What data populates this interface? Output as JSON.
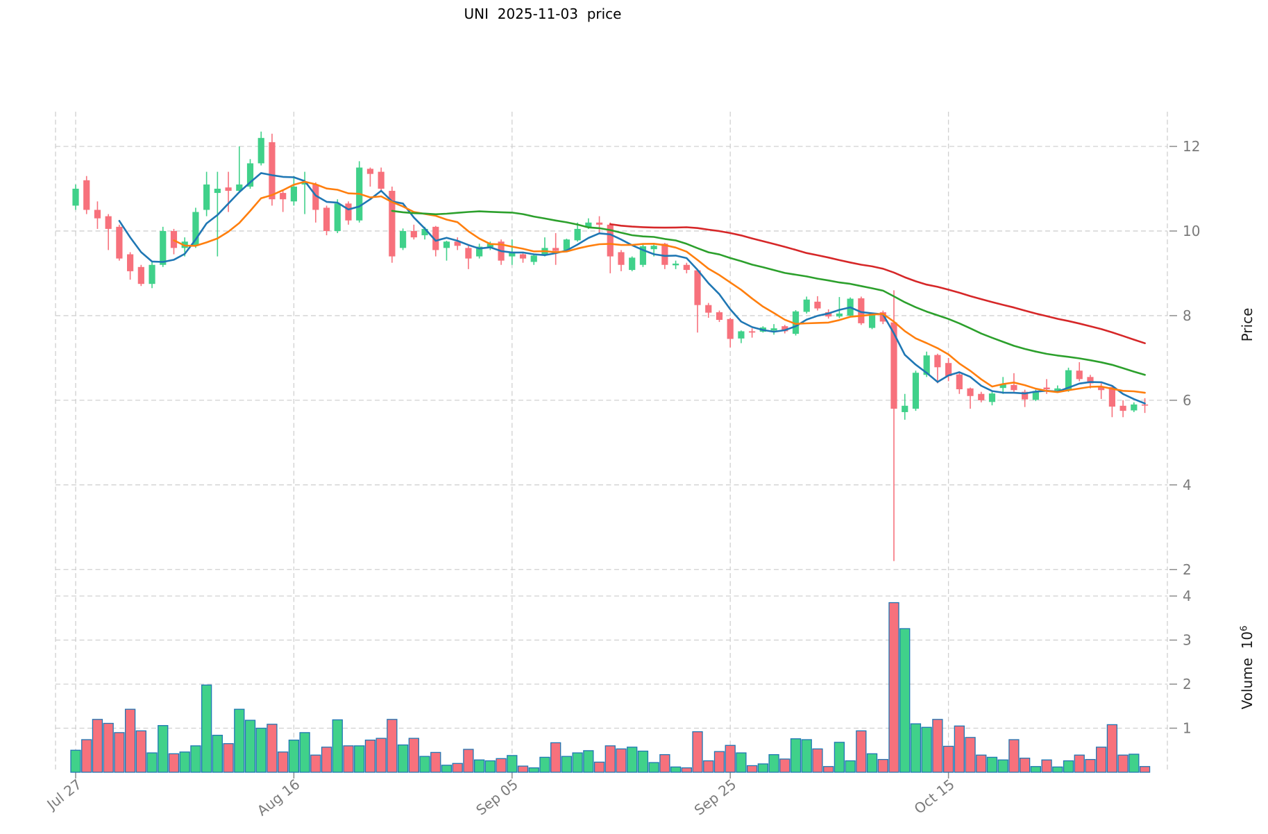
{
  "title": "UNI  2025-11-03  price",
  "axes": {
    "price_label": "Price",
    "volume_label": "Volume  10",
    "volume_exponent": "6"
  },
  "x_ticks": [
    {
      "label": "Jul 27",
      "index": 0
    },
    {
      "label": "Aug 16",
      "index": 20
    },
    {
      "label": "Sep 05",
      "index": 40
    },
    {
      "label": "Sep 25",
      "index": 60
    },
    {
      "label": "Oct 15",
      "index": 80
    }
  ],
  "price_ticks": [
    12,
    10,
    8,
    6,
    4,
    2
  ],
  "volume_ticks": [
    4,
    3,
    2,
    1
  ],
  "colors": {
    "up": "#40d18a",
    "down": "#f7717c",
    "volume_edge": "#1f77b4",
    "grid": "#d0d0d0",
    "tick_label": "#7a7a7a",
    "tick_mark": "#8c8c8c",
    "ma_colors": [
      "#1f77b4",
      "#ff7f0e",
      "#2ca02c",
      "#d62728"
    ]
  },
  "chart_data": {
    "type": "candlestick+volume",
    "title": "UNI  2025-11-03  price",
    "ylabel": "Price",
    "ylabel_lower": "Volume 10^6",
    "price_ylim": [
      1.98,
      12.82
    ],
    "volume_ylim": [
      0,
      4.52
    ],
    "grid": "dashed",
    "ma_windows": [
      5,
      10,
      30,
      50
    ],
    "ohlc": [
      [
        10.6,
        11.1,
        10.5,
        11.0
      ],
      [
        11.2,
        11.3,
        10.4,
        10.5
      ],
      [
        10.5,
        10.7,
        10.05,
        10.3
      ],
      [
        10.35,
        10.4,
        9.55,
        10.05
      ],
      [
        10.1,
        10.15,
        9.3,
        9.35
      ],
      [
        9.45,
        9.5,
        8.85,
        9.05
      ],
      [
        9.15,
        9.2,
        8.7,
        8.75
      ],
      [
        8.75,
        9.3,
        8.65,
        9.2
      ],
      [
        9.2,
        10.1,
        9.15,
        10.0
      ],
      [
        10.0,
        10.05,
        9.45,
        9.6
      ],
      [
        9.6,
        9.85,
        9.4,
        9.75
      ],
      [
        9.65,
        10.55,
        9.6,
        10.45
      ],
      [
        10.5,
        11.4,
        10.35,
        11.1
      ],
      [
        10.9,
        11.4,
        9.4,
        11.0
      ],
      [
        11.03,
        11.4,
        10.45,
        10.95
      ],
      [
        10.95,
        12.0,
        10.9,
        11.1
      ],
      [
        11.05,
        11.7,
        11.0,
        11.6
      ],
      [
        11.6,
        12.35,
        11.55,
        12.2
      ],
      [
        12.1,
        12.3,
        10.6,
        10.75
      ],
      [
        10.9,
        10.95,
        10.45,
        10.75
      ],
      [
        10.7,
        11.3,
        10.6,
        11.05
      ],
      [
        11.1,
        11.4,
        10.4,
        11.15
      ],
      [
        11.1,
        11.15,
        10.2,
        10.5
      ],
      [
        10.55,
        10.6,
        9.9,
        10.0
      ],
      [
        10.0,
        10.75,
        9.95,
        10.65
      ],
      [
        10.65,
        10.7,
        10.15,
        10.25
      ],
      [
        10.25,
        11.65,
        10.2,
        11.5
      ],
      [
        11.47,
        11.5,
        11.05,
        11.35
      ],
      [
        11.4,
        11.5,
        10.95,
        11.0
      ],
      [
        10.95,
        11.05,
        9.25,
        9.4
      ],
      [
        9.6,
        10.06,
        9.55,
        10.0
      ],
      [
        10.0,
        10.15,
        9.8,
        9.85
      ],
      [
        9.9,
        10.1,
        9.8,
        10.05
      ],
      [
        10.1,
        10.12,
        9.4,
        9.55
      ],
      [
        9.6,
        9.77,
        9.3,
        9.75
      ],
      [
        9.75,
        9.85,
        9.55,
        9.65
      ],
      [
        9.6,
        9.65,
        9.1,
        9.35
      ],
      [
        9.4,
        9.7,
        9.35,
        9.63
      ],
      [
        9.62,
        9.75,
        9.55,
        9.7
      ],
      [
        9.75,
        9.8,
        9.2,
        9.3
      ],
      [
        9.4,
        9.8,
        9.2,
        9.48
      ],
      [
        9.45,
        9.5,
        9.25,
        9.35
      ],
      [
        9.27,
        9.45,
        9.2,
        9.42
      ],
      [
        9.43,
        9.85,
        9.4,
        9.6
      ],
      [
        9.6,
        9.95,
        9.2,
        9.53
      ],
      [
        9.55,
        9.82,
        9.5,
        9.8
      ],
      [
        9.78,
        10.2,
        9.75,
        10.05
      ],
      [
        10.08,
        10.3,
        10.05,
        10.2
      ],
      [
        10.2,
        10.35,
        9.95,
        10.15
      ],
      [
        10.15,
        10.2,
        9.0,
        9.4
      ],
      [
        9.5,
        9.55,
        9.05,
        9.2
      ],
      [
        9.08,
        9.4,
        9.05,
        9.37
      ],
      [
        9.2,
        9.7,
        9.15,
        9.64
      ],
      [
        9.57,
        9.7,
        9.4,
        9.65
      ],
      [
        9.7,
        9.72,
        9.1,
        9.2
      ],
      [
        9.19,
        9.3,
        9.1,
        9.23
      ],
      [
        9.2,
        9.25,
        9.0,
        9.08
      ],
      [
        9.07,
        9.1,
        7.6,
        8.25
      ],
      [
        8.25,
        8.3,
        7.95,
        8.07
      ],
      [
        8.08,
        8.12,
        7.85,
        7.9
      ],
      [
        7.92,
        7.95,
        7.25,
        7.45
      ],
      [
        7.46,
        7.65,
        7.35,
        7.63
      ],
      [
        7.63,
        7.7,
        7.48,
        7.6
      ],
      [
        7.62,
        7.75,
        7.6,
        7.72
      ],
      [
        7.65,
        7.8,
        7.55,
        7.7
      ],
      [
        7.75,
        7.78,
        7.58,
        7.63
      ],
      [
        7.57,
        8.13,
        7.53,
        8.1
      ],
      [
        8.09,
        8.45,
        8.05,
        8.38
      ],
      [
        8.33,
        8.46,
        8.12,
        8.17
      ],
      [
        8.08,
        8.15,
        7.93,
        7.98
      ],
      [
        7.98,
        8.44,
        7.94,
        8.05
      ],
      [
        8.0,
        8.43,
        7.97,
        8.4
      ],
      [
        8.41,
        8.45,
        7.78,
        7.82
      ],
      [
        7.71,
        8.05,
        7.68,
        8.02
      ],
      [
        8.08,
        8.12,
        7.8,
        7.86
      ],
      [
        7.84,
        8.6,
        2.2,
        5.8
      ],
      [
        5.72,
        6.15,
        5.54,
        5.87
      ],
      [
        5.8,
        6.7,
        5.75,
        6.65
      ],
      [
        6.6,
        7.15,
        6.55,
        7.06
      ],
      [
        7.07,
        7.1,
        6.4,
        6.78
      ],
      [
        6.88,
        7.0,
        6.45,
        6.57
      ],
      [
        6.61,
        6.65,
        6.15,
        6.26
      ],
      [
        6.28,
        6.3,
        5.8,
        6.1
      ],
      [
        6.15,
        6.2,
        5.95,
        6.0
      ],
      [
        5.96,
        6.2,
        5.88,
        6.16
      ],
      [
        6.29,
        6.55,
        6.15,
        6.38
      ],
      [
        6.36,
        6.64,
        6.2,
        6.24
      ],
      [
        6.2,
        6.25,
        5.84,
        6.02
      ],
      [
        6.01,
        6.25,
        5.98,
        6.22
      ],
      [
        6.3,
        6.5,
        6.15,
        6.26
      ],
      [
        6.23,
        6.35,
        6.18,
        6.28
      ],
      [
        6.24,
        6.77,
        6.2,
        6.71
      ],
      [
        6.7,
        6.9,
        6.45,
        6.5
      ],
      [
        6.55,
        6.6,
        6.28,
        6.4
      ],
      [
        6.32,
        6.4,
        6.03,
        6.24
      ],
      [
        6.31,
        6.35,
        5.6,
        5.85
      ],
      [
        5.87,
        6.0,
        5.6,
        5.75
      ],
      [
        5.76,
        5.95,
        5.72,
        5.9
      ],
      [
        5.9,
        6.05,
        5.7,
        5.88
      ]
    ],
    "volume_millions": [
      0.5,
      0.74,
      1.2,
      1.11,
      0.9,
      1.43,
      0.94,
      0.44,
      1.06,
      0.42,
      0.46,
      0.6,
      1.98,
      0.84,
      0.65,
      1.43,
      1.18,
      1.0,
      1.09,
      0.46,
      0.73,
      0.9,
      0.39,
      0.57,
      1.19,
      0.6,
      0.6,
      0.73,
      0.77,
      1.2,
      0.62,
      0.77,
      0.36,
      0.45,
      0.16,
      0.2,
      0.52,
      0.28,
      0.26,
      0.31,
      0.38,
      0.14,
      0.1,
      0.34,
      0.67,
      0.36,
      0.44,
      0.49,
      0.23,
      0.6,
      0.53,
      0.57,
      0.48,
      0.22,
      0.4,
      0.12,
      0.1,
      0.92,
      0.26,
      0.47,
      0.61,
      0.44,
      0.15,
      0.19,
      0.4,
      0.3,
      0.76,
      0.74,
      0.53,
      0.13,
      0.68,
      0.26,
      0.94,
      0.42,
      0.29,
      3.85,
      3.26,
      1.1,
      1.02,
      1.2,
      0.59,
      1.05,
      0.79,
      0.39,
      0.34,
      0.28,
      0.74,
      0.32,
      0.13,
      0.28,
      0.12,
      0.26,
      0.39,
      0.29,
      0.57,
      1.08,
      0.39,
      0.41,
      0.13
    ]
  }
}
